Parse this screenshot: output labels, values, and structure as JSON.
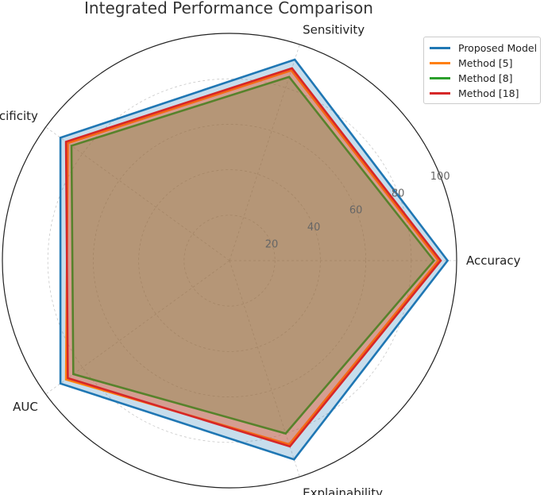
{
  "chart_data": {
    "type": "radar",
    "title": "Integrated Performance Comparison",
    "axes": [
      "Accuracy",
      "Sensitivity",
      "Specificity",
      "AUC",
      "Explainability"
    ],
    "rlim": [
      0,
      100
    ],
    "rticks": [
      20,
      40,
      60,
      80,
      100
    ],
    "grid": true,
    "legend_position": "top-right",
    "series": [
      {
        "name": "Proposed Model",
        "color": "#1f77b4",
        "values": [
          96,
          93,
          92,
          92,
          92
        ]
      },
      {
        "name": "Method [5]",
        "color": "#ff7f0e",
        "values": [
          92,
          88,
          88,
          89,
          85
        ]
      },
      {
        "name": "Method [8]",
        "color": "#2ca02c",
        "values": [
          90,
          85,
          86,
          85,
          80
        ]
      },
      {
        "name": "Method [18]",
        "color": "#d62728",
        "values": [
          93,
          89,
          89,
          88,
          86
        ]
      }
    ]
  }
}
